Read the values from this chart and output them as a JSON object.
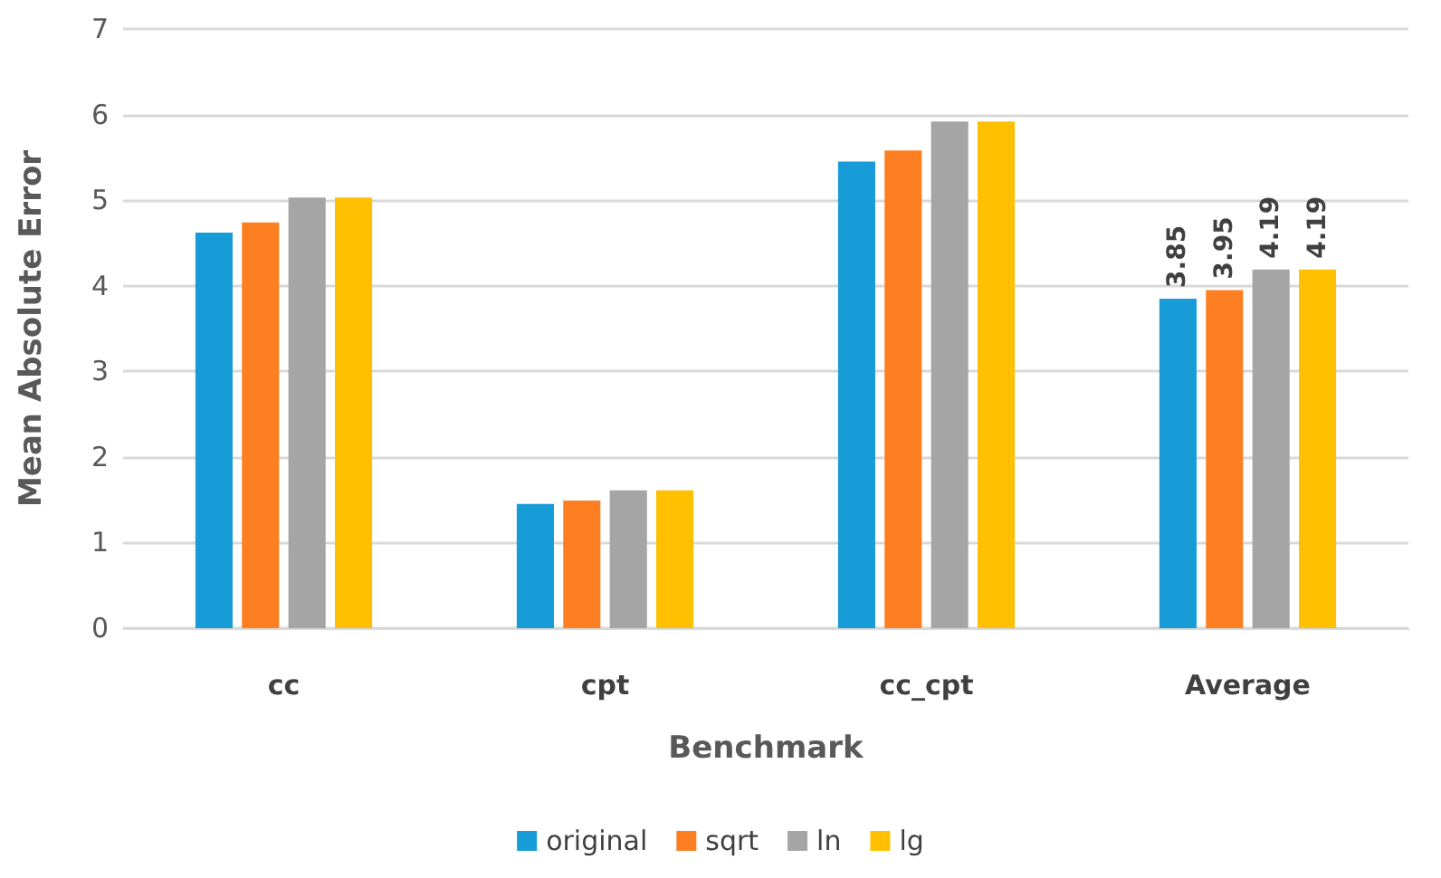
{
  "chart_data": {
    "type": "bar",
    "xlabel": "Benchmark",
    "ylabel": "Mean Absolute Error",
    "categories": [
      "cc",
      "cpt",
      "cc_cpt",
      "Average"
    ],
    "series": [
      {
        "name": "original",
        "color": "#179cd8",
        "values": [
          4.62,
          1.45,
          5.45,
          3.85
        ],
        "value_labels": [
          null,
          null,
          null,
          "3.85"
        ]
      },
      {
        "name": "sqrt",
        "color": "#fe7f22",
        "values": [
          4.74,
          1.49,
          5.58,
          3.95
        ],
        "value_labels": [
          null,
          null,
          null,
          "3.95"
        ]
      },
      {
        "name": "ln",
        "color": "#a5a5a5",
        "values": [
          5.03,
          1.61,
          5.92,
          4.19
        ],
        "value_labels": [
          null,
          null,
          null,
          "4.19"
        ]
      },
      {
        "name": "lg",
        "color": "#fec000",
        "values": [
          5.03,
          1.61,
          5.92,
          4.19
        ],
        "value_labels": [
          null,
          null,
          null,
          "4.19"
        ]
      }
    ],
    "ylim": [
      0,
      7
    ],
    "yticks": [
      0,
      1,
      2,
      3,
      4,
      5,
      6,
      7
    ],
    "grid": "y",
    "legend": "bottom"
  }
}
